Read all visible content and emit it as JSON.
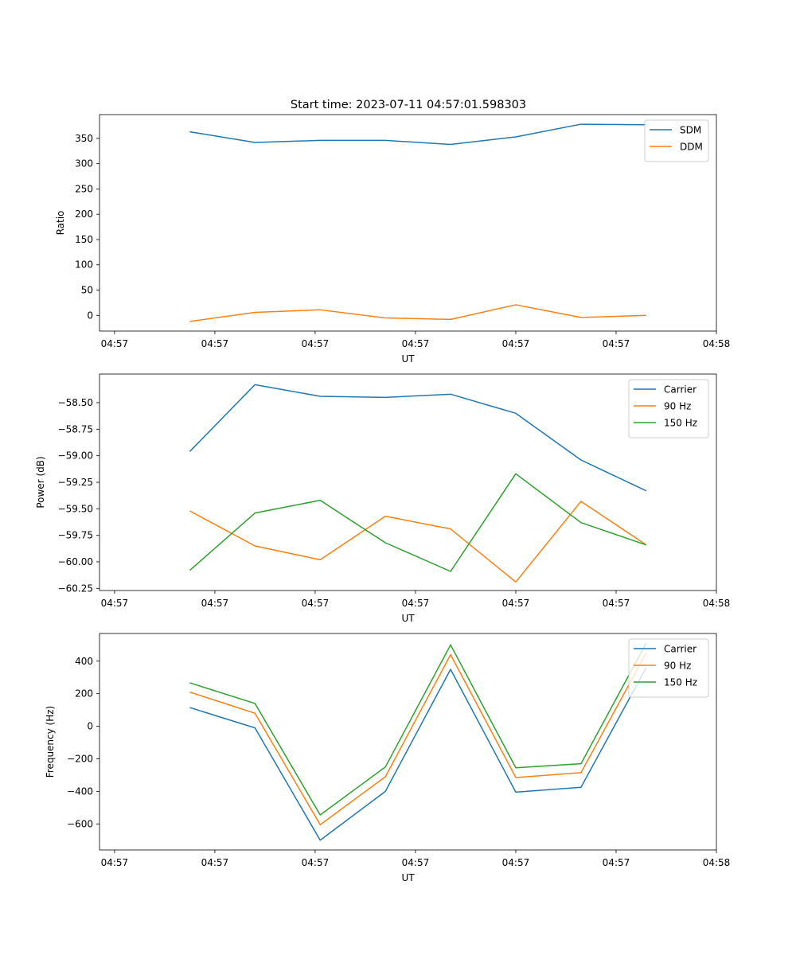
{
  "figure_title": "Start time: 2023-07-11 04:57:01.598303",
  "chart_data": [
    {
      "type": "line",
      "title": "Start time: 2023-07-11 04:57:01.598303",
      "xlabel": "UT",
      "ylabel": "Ratio",
      "x": [
        0.75,
        1.4,
        2.05,
        2.7,
        3.35,
        4.0,
        4.65,
        5.3
      ],
      "x_ticks": [
        {
          "value": 0,
          "label": "04:57"
        },
        {
          "value": 1,
          "label": "04:57"
        },
        {
          "value": 2,
          "label": "04:57"
        },
        {
          "value": 3,
          "label": "04:57"
        },
        {
          "value": 4,
          "label": "04:57"
        },
        {
          "value": 5,
          "label": "04:57"
        },
        {
          "value": 6,
          "label": "04:58"
        }
      ],
      "xlim": [
        -0.15,
        6.0
      ],
      "ylim": [
        -31,
        397
      ],
      "y_ticks": [
        0,
        50,
        100,
        150,
        200,
        250,
        300,
        350
      ],
      "y_tick_labels": [
        "0",
        "50",
        "100",
        "150",
        "200",
        "250",
        "300",
        "350"
      ],
      "legend_position": "top-right",
      "series": [
        {
          "name": "SDM",
          "color": "#1f77b4",
          "values": [
            363,
            342,
            346,
            346,
            338,
            353,
            378,
            377
          ]
        },
        {
          "name": "DDM",
          "color": "#ff7f0e",
          "values": [
            -12,
            6,
            11,
            -5,
            -8,
            21,
            -4,
            0
          ]
        }
      ]
    },
    {
      "type": "line",
      "title": "",
      "xlabel": "UT",
      "ylabel": "Power (dB)",
      "x": [
        0.75,
        1.4,
        2.05,
        2.7,
        3.35,
        4.0,
        4.65,
        5.3
      ],
      "x_ticks": [
        {
          "value": 0,
          "label": "04:57"
        },
        {
          "value": 1,
          "label": "04:57"
        },
        {
          "value": 2,
          "label": "04:57"
        },
        {
          "value": 3,
          "label": "04:57"
        },
        {
          "value": 4,
          "label": "04:57"
        },
        {
          "value": 5,
          "label": "04:57"
        },
        {
          "value": 6,
          "label": "04:58"
        }
      ],
      "xlim": [
        -0.15,
        6.0
      ],
      "ylim": [
        -60.27,
        -58.23
      ],
      "y_ticks": [
        -60.25,
        -60.0,
        -59.75,
        -59.5,
        -59.25,
        -59.0,
        -58.75,
        -58.5
      ],
      "y_tick_labels": [
        "−60.25",
        "−60.00",
        "−59.75",
        "−59.50",
        "−59.25",
        "−59.00",
        "−58.75",
        "−58.50"
      ],
      "legend_position": "top-right",
      "series": [
        {
          "name": "Carrier",
          "color": "#1f77b4",
          "values": [
            -58.96,
            -58.33,
            -58.44,
            -58.45,
            -58.42,
            -58.6,
            -59.04,
            -59.33
          ]
        },
        {
          "name": "90 Hz",
          "color": "#ff7f0e",
          "values": [
            -59.52,
            -59.85,
            -59.98,
            -59.57,
            -59.69,
            -60.19,
            -59.43,
            -59.84
          ]
        },
        {
          "name": "150 Hz",
          "color": "#2ca02c",
          "values": [
            -60.08,
            -59.54,
            -59.42,
            -59.82,
            -60.09,
            -59.17,
            -59.63,
            -59.84
          ]
        }
      ]
    },
    {
      "type": "line",
      "title": "",
      "xlabel": "UT",
      "ylabel": "Frequency (Hz)",
      "x": [
        0.75,
        1.4,
        2.05,
        2.7,
        3.35,
        4.0,
        4.65,
        5.3
      ],
      "x_ticks": [
        {
          "value": 0,
          "label": "04:57"
        },
        {
          "value": 1,
          "label": "04:57"
        },
        {
          "value": 2,
          "label": "04:57"
        },
        {
          "value": 3,
          "label": "04:57"
        },
        {
          "value": 4,
          "label": "04:57"
        },
        {
          "value": 5,
          "label": "04:57"
        },
        {
          "value": 6,
          "label": "04:58"
        }
      ],
      "xlim": [
        -0.15,
        6.0
      ],
      "ylim": [
        -760,
        570
      ],
      "y_ticks": [
        -600,
        -400,
        -200,
        0,
        200,
        400
      ],
      "y_tick_labels": [
        "−600",
        "−400",
        "−200",
        "0",
        "200",
        "400"
      ],
      "legend_position": "top-right",
      "series": [
        {
          "name": "Carrier",
          "color": "#1f77b4",
          "values": [
            115,
            -10,
            -700,
            -400,
            350,
            -405,
            -375,
            360
          ]
        },
        {
          "name": "90 Hz",
          "color": "#ff7f0e",
          "values": [
            210,
            80,
            -605,
            -310,
            440,
            -315,
            -285,
            450
          ]
        },
        {
          "name": "150 Hz",
          "color": "#2ca02c",
          "values": [
            267,
            140,
            -545,
            -250,
            500,
            -255,
            -230,
            510
          ]
        }
      ]
    }
  ]
}
